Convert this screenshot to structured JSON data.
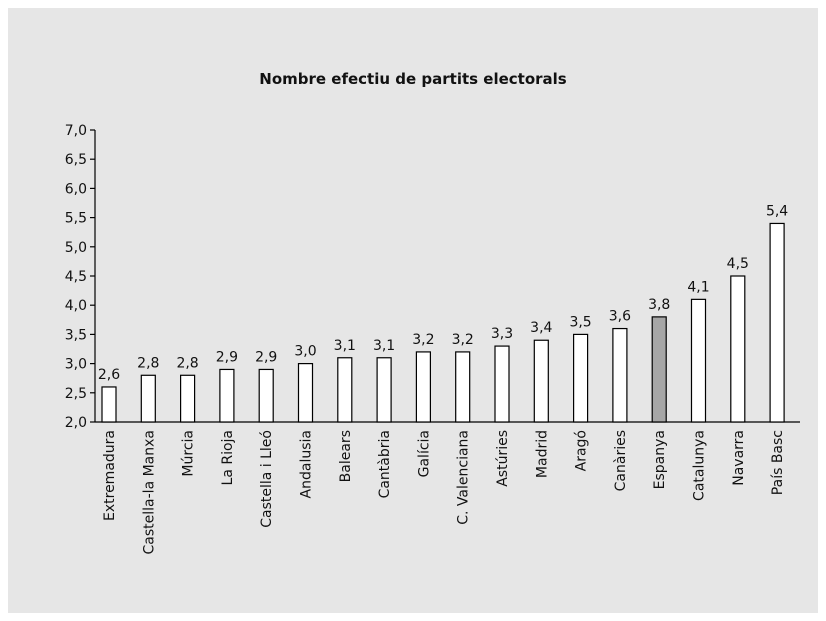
{
  "chart_data": {
    "type": "bar",
    "title": "Nombre efectiu de partits electorals",
    "xlabel": "",
    "ylabel": "",
    "ylim": [
      2.0,
      7.0
    ],
    "yticks": [
      "2,0",
      "2,5",
      "3,0",
      "3,5",
      "4,0",
      "4,5",
      "5,0",
      "5,5",
      "6,0",
      "6,5",
      "7,0"
    ],
    "categories": [
      "Extremadura",
      "Castella-la Manxa",
      "Múrcia",
      "La Rioja",
      "Castella i Lleó",
      "Andalusia",
      "Balears",
      "Cantàbria",
      "Galícia",
      "C. Valenciana",
      "Astúries",
      "Madrid",
      "Aragó",
      "Canàries",
      "Espanya",
      "Catalunya",
      "Navarra",
      "País Basc"
    ],
    "values": [
      2.6,
      2.8,
      2.8,
      2.9,
      2.9,
      3.0,
      3.1,
      3.1,
      3.2,
      3.2,
      3.3,
      3.4,
      3.5,
      3.6,
      3.8,
      4.1,
      4.5,
      5.4
    ],
    "value_labels": [
      "2,6",
      "2,8",
      "2,8",
      "2,9",
      "2,9",
      "3,0",
      "3,1",
      "3,1",
      "3,2",
      "3,2",
      "3,3",
      "3,4",
      "3,5",
      "3,6",
      "3,8",
      "4,1",
      "4,5",
      "5,4"
    ],
    "highlight_category": "Espanya",
    "colors": {
      "bar": "#ffffff",
      "highlight": "#a6a6a6",
      "stroke": "#000000",
      "background": "#e6e6e6"
    },
    "grid": false,
    "legend": "none"
  }
}
